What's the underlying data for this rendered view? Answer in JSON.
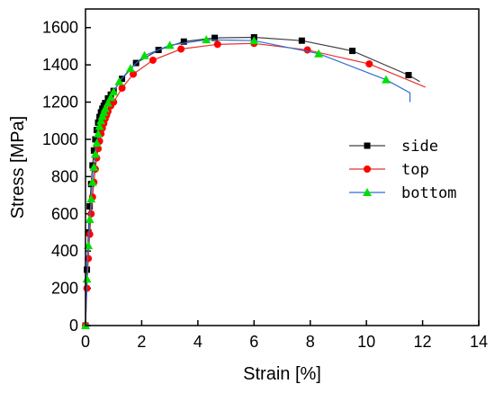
{
  "chart_data": {
    "type": "line",
    "xlabel": "Strain [%]",
    "ylabel": "Stress [MPa]",
    "xlim": [
      0,
      14
    ],
    "ylim": [
      0,
      1700
    ],
    "xticks": [
      0,
      2,
      4,
      6,
      8,
      10,
      12,
      14
    ],
    "yticks": [
      0,
      200,
      400,
      600,
      800,
      1000,
      1200,
      1400,
      1600
    ],
    "legend_position": "center-right",
    "series": [
      {
        "name": "side",
        "color": "#404040",
        "marker": "square",
        "marker_color": "#000000",
        "x": [
          0.0,
          0.05,
          0.1,
          0.15,
          0.2,
          0.25,
          0.3,
          0.35,
          0.4,
          0.45,
          0.5,
          0.55,
          0.6,
          0.65,
          0.7,
          0.8,
          0.9,
          1.0,
          1.3,
          1.8,
          2.6,
          3.5,
          4.6,
          6.0,
          7.7,
          9.5,
          11.5
        ],
        "y": [
          0,
          300,
          500,
          640,
          760,
          860,
          940,
          1000,
          1050,
          1090,
          1120,
          1145,
          1165,
          1180,
          1195,
          1220,
          1240,
          1260,
          1325,
          1410,
          1480,
          1525,
          1545,
          1548,
          1530,
          1475,
          1345
        ],
        "curve_end": [
          11.9,
          1310
        ]
      },
      {
        "name": "top",
        "color": "#e83030",
        "marker": "circle",
        "marker_color": "#ff0000",
        "x": [
          0.0,
          0.05,
          0.1,
          0.15,
          0.2,
          0.25,
          0.3,
          0.35,
          0.4,
          0.45,
          0.5,
          0.55,
          0.6,
          0.65,
          0.7,
          0.75,
          0.8,
          0.9,
          1.0,
          1.3,
          1.7,
          2.4,
          3.4,
          4.7,
          6.0,
          7.9,
          10.1
        ],
        "y": [
          0,
          200,
          360,
          490,
          600,
          690,
          770,
          840,
          900,
          950,
          990,
          1030,
          1060,
          1085,
          1110,
          1130,
          1150,
          1180,
          1200,
          1275,
          1350,
          1425,
          1485,
          1510,
          1515,
          1480,
          1405
        ],
        "curve_end": [
          12.1,
          1280
        ]
      },
      {
        "name": "bottom",
        "color": "#2a6fd0",
        "marker": "triangle",
        "marker_color": "#00e000",
        "x": [
          0.0,
          0.05,
          0.1,
          0.15,
          0.2,
          0.25,
          0.3,
          0.35,
          0.4,
          0.45,
          0.5,
          0.55,
          0.6,
          0.65,
          0.7,
          0.8,
          0.9,
          1.0,
          1.2,
          1.6,
          2.1,
          3.0,
          4.3,
          6.0,
          8.3,
          10.7
        ],
        "y": [
          0,
          250,
          430,
          570,
          680,
          770,
          850,
          920,
          980,
          1030,
          1070,
          1100,
          1125,
          1145,
          1165,
          1195,
          1225,
          1255,
          1310,
          1380,
          1450,
          1505,
          1535,
          1530,
          1460,
          1320
        ],
        "curve_end": [
          11.55,
          1250
        ],
        "curve_drop": [
          11.55,
          1200
        ]
      }
    ]
  }
}
